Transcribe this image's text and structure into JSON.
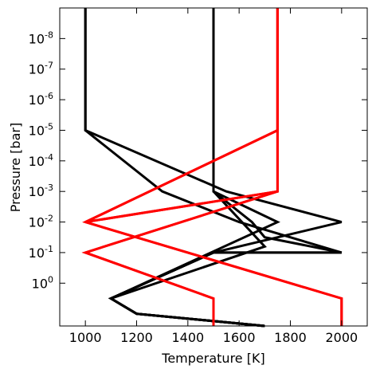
{
  "chart_data": {
    "type": "line",
    "xlabel": "Temperature [K]",
    "ylabel": "Pressure [bar]",
    "xlim": [
      900,
      2100
    ],
    "ylim_log10": [
      1.4,
      -9.0
    ],
    "y_scale": "log",
    "y_inverted": true,
    "grid": false,
    "x_ticks": [
      {
        "value": 1000,
        "label": "1000"
      },
      {
        "value": 1200,
        "label": "1200"
      },
      {
        "value": 1400,
        "label": "1400"
      },
      {
        "value": 1600,
        "label": "1600"
      },
      {
        "value": 1800,
        "label": "1800"
      },
      {
        "value": 2000,
        "label": "2000"
      }
    ],
    "y_ticks": [
      {
        "exp": -8,
        "base": "10",
        "sup": "-8"
      },
      {
        "exp": -7,
        "base": "10",
        "sup": "-7"
      },
      {
        "exp": -6,
        "base": "10",
        "sup": "-6"
      },
      {
        "exp": -5,
        "base": "10",
        "sup": "-5"
      },
      {
        "exp": -4,
        "base": "10",
        "sup": "-4"
      },
      {
        "exp": -3,
        "base": "10",
        "sup": "-3"
      },
      {
        "exp": -2,
        "base": "10",
        "sup": "-2"
      },
      {
        "exp": -1,
        "base": "10",
        "sup": "-1"
      },
      {
        "exp": 0,
        "base": "10",
        "sup": "0"
      }
    ],
    "series": [
      {
        "color": "#000000",
        "points": [
          [
            1000,
            -9
          ],
          [
            1000,
            -5
          ],
          [
            1300,
            -3
          ],
          [
            1600,
            -2
          ],
          [
            2000,
            -1
          ],
          [
            1500,
            -1
          ],
          [
            1100,
            0.5
          ],
          [
            1200,
            1
          ],
          [
            1700,
            1.4
          ]
        ]
      },
      {
        "color": "#000000",
        "points": [
          [
            1000,
            -9
          ],
          [
            1000,
            -5
          ],
          [
            1550,
            -3
          ],
          [
            2000,
            -2
          ],
          [
            1500,
            -1
          ],
          [
            1100,
            0.5
          ],
          [
            1200,
            1
          ],
          [
            1700,
            1.4
          ]
        ]
      },
      {
        "color": "#000000",
        "points": [
          [
            1500,
            -9
          ],
          [
            1500,
            -3
          ],
          [
            1750,
            -2
          ],
          [
            1100,
            0.5
          ],
          [
            1200,
            1
          ],
          [
            1700,
            1.4
          ]
        ]
      },
      {
        "color": "#000000",
        "points": [
          [
            1500,
            -9
          ],
          [
            1500,
            -3
          ],
          [
            1700,
            -1.2
          ],
          [
            1100,
            0.5
          ],
          [
            1200,
            1
          ],
          [
            1700,
            1.4
          ]
        ]
      },
      {
        "color": "#000000",
        "points": [
          [
            1500,
            -9
          ],
          [
            1500,
            -3
          ],
          [
            1650,
            -2
          ],
          [
            1700,
            -1.5
          ],
          [
            2000,
            -1
          ],
          [
            1500,
            -1
          ],
          [
            1100,
            0.5
          ],
          [
            1200,
            1
          ],
          [
            1700,
            1.4
          ]
        ]
      },
      {
        "color": "#ff0000",
        "points": [
          [
            1750,
            -9
          ],
          [
            1750,
            -5
          ],
          [
            1000,
            -2
          ],
          [
            1750,
            -3
          ],
          [
            1000,
            -1
          ],
          [
            1500,
            0.5
          ],
          [
            1500,
            1.4
          ]
        ]
      },
      {
        "color": "#ff0000",
        "points": [
          [
            1750,
            -9
          ],
          [
            1750,
            -3
          ],
          [
            1000,
            -1
          ],
          [
            1500,
            0.5
          ],
          [
            1500,
            1.4
          ]
        ]
      },
      {
        "color": "#ff0000",
        "points": [
          [
            1750,
            -9
          ],
          [
            1750,
            -5
          ],
          [
            1000,
            -2
          ],
          [
            2000,
            0.5
          ],
          [
            2000,
            1.4
          ]
        ]
      },
      {
        "color": "#ff0000",
        "points": [
          [
            1750,
            -9
          ],
          [
            1750,
            -3
          ],
          [
            1000,
            -2
          ],
          [
            2000,
            0.5
          ],
          [
            2000,
            1.4
          ]
        ]
      }
    ]
  }
}
